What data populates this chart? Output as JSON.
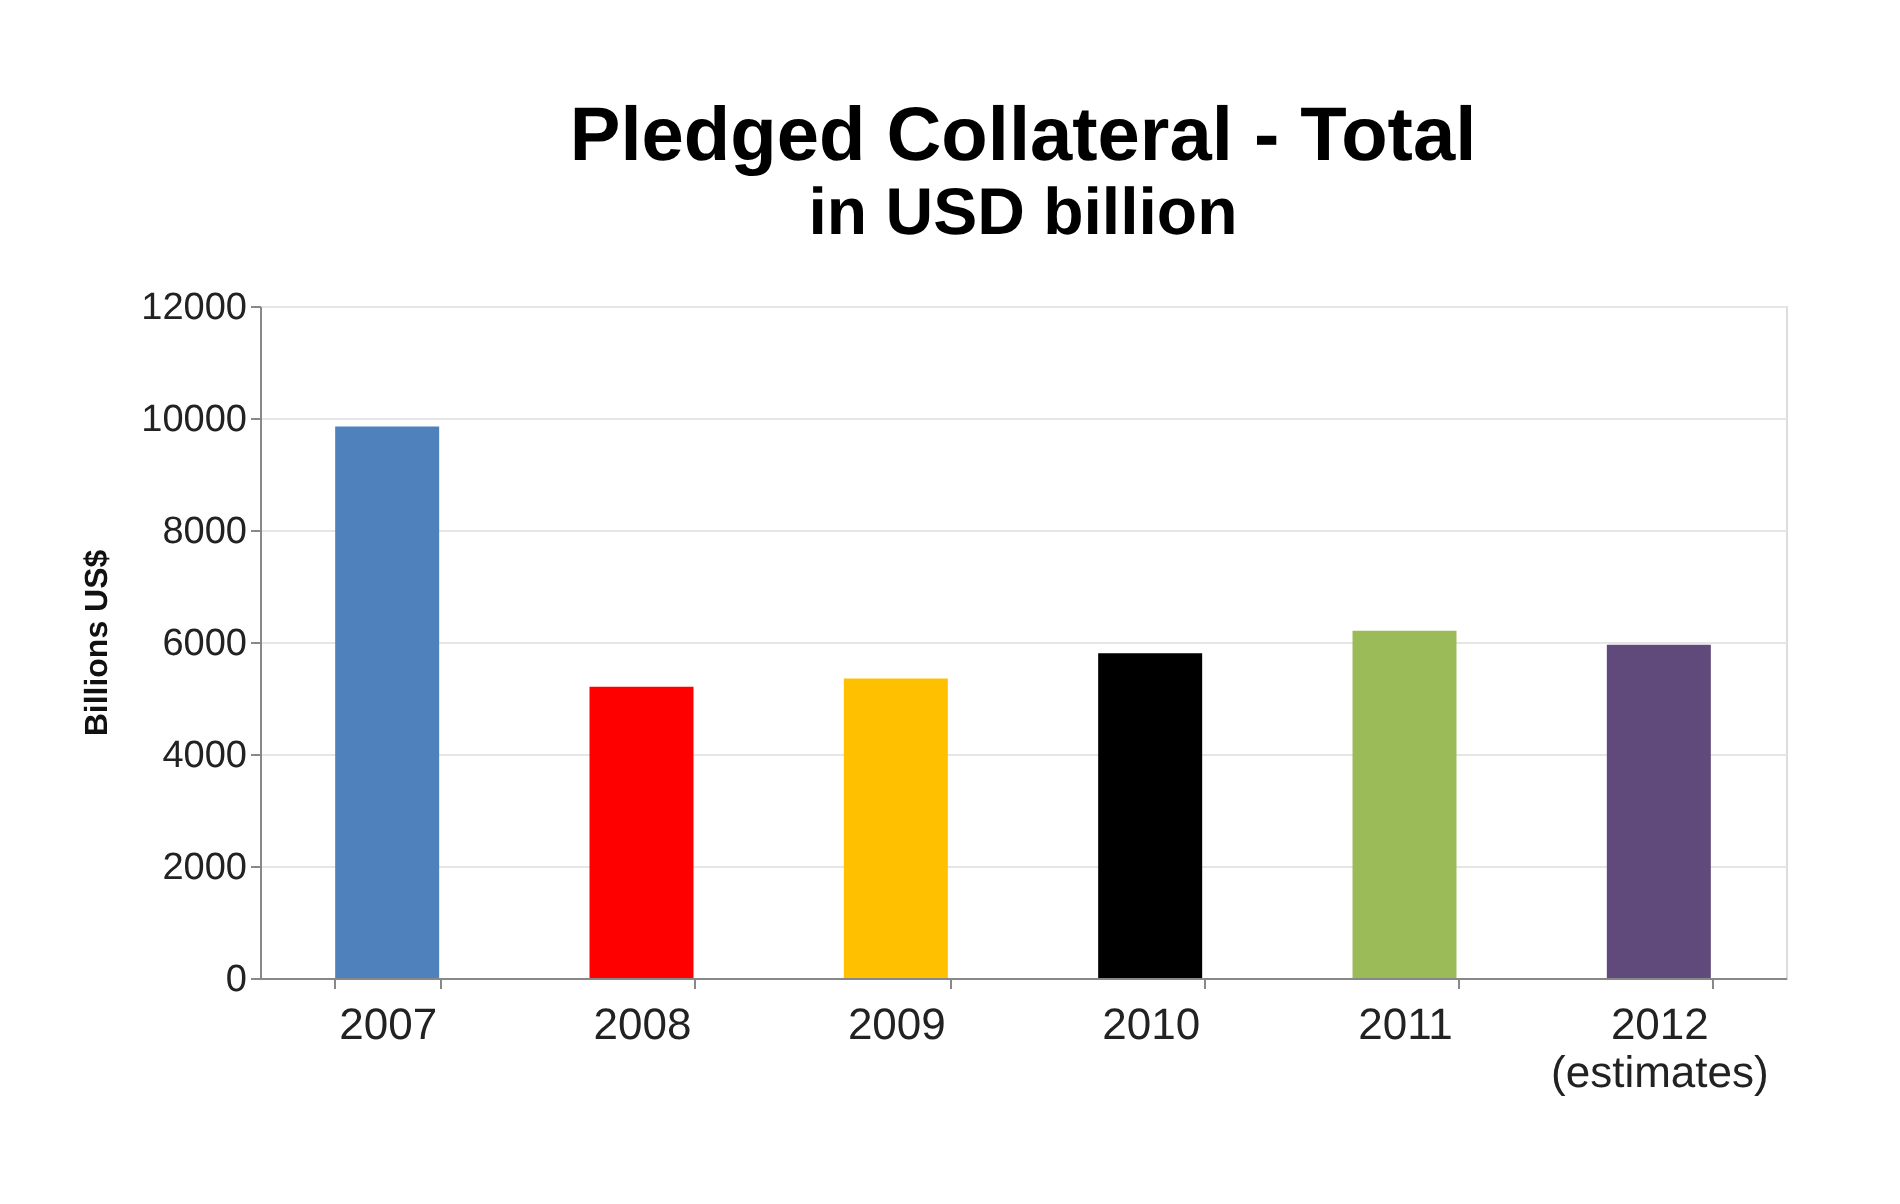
{
  "chart_data": {
    "type": "bar",
    "title": "Pledged Collateral - Total",
    "subtitle": "in USD billion",
    "ylabel": "Billions US$",
    "categories": [
      "2007",
      "2008",
      "2009",
      "2010",
      "2011",
      "2012\n(estimates)"
    ],
    "values": [
      9850,
      5200,
      5350,
      5800,
      6200,
      5950
    ],
    "colors": [
      "#4f81bd",
      "#ff0000",
      "#ffc000",
      "#000000",
      "#9bbb59",
      "#604a7b"
    ],
    "ylim": [
      0,
      12000
    ],
    "yticks": [
      0,
      2000,
      4000,
      6000,
      8000,
      10000,
      12000
    ],
    "grid": "y"
  }
}
